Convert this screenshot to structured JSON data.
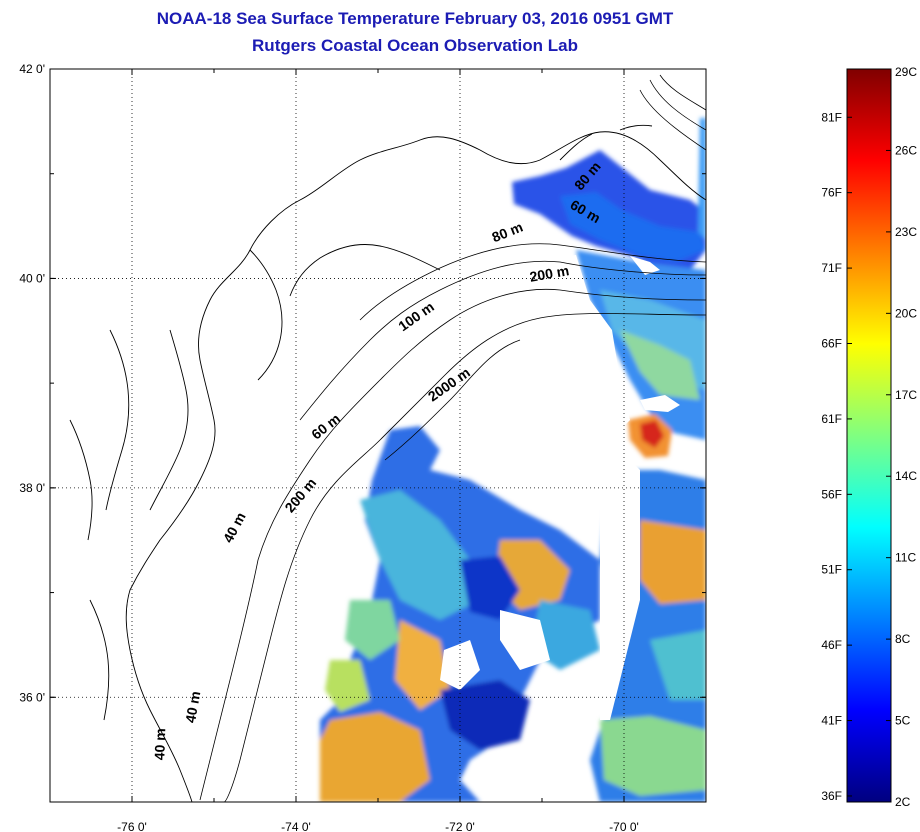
{
  "title": "NOAA-18 Sea Surface Temperature February 03, 2016 0951 GMT",
  "subtitle": "Rutgers Coastal Ocean Observation Lab",
  "map": {
    "lon_range": [
      -77,
      -69
    ],
    "lat_range": [
      35,
      42
    ],
    "lon_ticks": [
      {
        "value": -76,
        "label": "-76 0'"
      },
      {
        "value": -74,
        "label": "-74 0'"
      },
      {
        "value": -72,
        "label": "-72 0'"
      },
      {
        "value": -70,
        "label": "-70 0'"
      }
    ],
    "lat_ticks": [
      {
        "value": 42,
        "label": "42 0'"
      },
      {
        "value": 40,
        "label": "40 0'"
      },
      {
        "value": 38,
        "label": "38 0'"
      },
      {
        "value": 36,
        "label": "36 0'"
      }
    ],
    "grid": true,
    "grid_style": "dotted",
    "contour_labels": [
      {
        "text": "80 m",
        "lon": -70.4,
        "lat": 40.95,
        "angle": -50
      },
      {
        "text": "60 m",
        "lon": -70.5,
        "lat": 40.6,
        "angle": 30
      },
      {
        "text": "80 m",
        "lon": -71.4,
        "lat": 40.4,
        "angle": -22
      },
      {
        "text": "200 m",
        "lon": -70.9,
        "lat": 40.0,
        "angle": -10
      },
      {
        "text": "100 m",
        "lon": -72.5,
        "lat": 39.6,
        "angle": -35
      },
      {
        "text": "2000 m",
        "lon": -72.1,
        "lat": 38.95,
        "angle": -35
      },
      {
        "text": "60 m",
        "lon": -73.6,
        "lat": 38.55,
        "angle": -38
      },
      {
        "text": "200 m",
        "lon": -73.9,
        "lat": 37.9,
        "angle": -50
      },
      {
        "text": "40 m",
        "lon": -74.7,
        "lat": 37.6,
        "angle": -62
      },
      {
        "text": "40 m",
        "lon": -75.2,
        "lat": 35.9,
        "angle": -80
      },
      {
        "text": "40 m",
        "lon": -75.6,
        "lat": 35.55,
        "angle": -88
      }
    ]
  },
  "colorbar": {
    "colors": [
      "#000080",
      "#0000ff",
      "#0080ff",
      "#00ffff",
      "#80ff80",
      "#ffff00",
      "#ff8000",
      "#ff0000",
      "#800000"
    ],
    "celsius": [
      {
        "value": 29,
        "label": "29C"
      },
      {
        "value": 26,
        "label": "26C"
      },
      {
        "value": 23,
        "label": "23C"
      },
      {
        "value": 20,
        "label": "20C"
      },
      {
        "value": 17,
        "label": "17C"
      },
      {
        "value": 14,
        "label": "14C"
      },
      {
        "value": 11,
        "label": "11C"
      },
      {
        "value": 8,
        "label": "8C"
      },
      {
        "value": 5,
        "label": "5C"
      },
      {
        "value": 2,
        "label": "2C"
      }
    ],
    "fahrenheit": [
      {
        "value": 81,
        "label": "81F"
      },
      {
        "value": 76,
        "label": "76F"
      },
      {
        "value": 71,
        "label": "71F"
      },
      {
        "value": 66,
        "label": "66F"
      },
      {
        "value": 61,
        "label": "61F"
      },
      {
        "value": 56,
        "label": "56F"
      },
      {
        "value": 51,
        "label": "51F"
      },
      {
        "value": 46,
        "label": "46F"
      },
      {
        "value": 41,
        "label": "41F"
      },
      {
        "value": 36,
        "label": "36F"
      }
    ],
    "range_c": [
      2,
      29
    ]
  }
}
